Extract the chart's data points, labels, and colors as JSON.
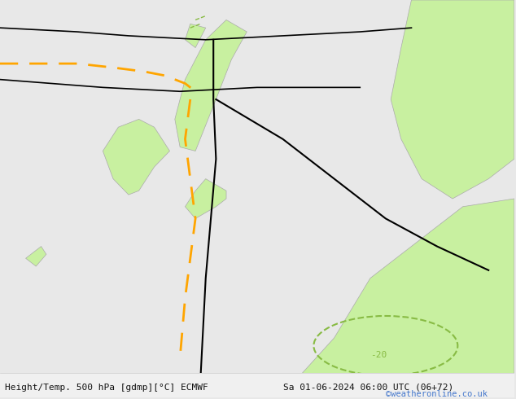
{
  "title_left": "Height/Temp. 500 hPa [gdmp][°C] ECMWF",
  "title_right": "Sa 01-06-2024 06:00 UTC (06+72)",
  "watermark": "©weatheronline.co.uk",
  "bg_color": "#e8e8e8",
  "land_color": "#c8f0a0",
  "border_color": "#000000",
  "fig_width": 6.34,
  "fig_height": 4.9,
  "dpi": 100,
  "title_fontsize": 9,
  "watermark_color": "#4477cc",
  "contour_label": "-20",
  "contour_label_color": "#88bb44",
  "orange_dashed_color": "#FFA500",
  "black_solid_color": "#000000",
  "green_contour_color": "#88bb44"
}
